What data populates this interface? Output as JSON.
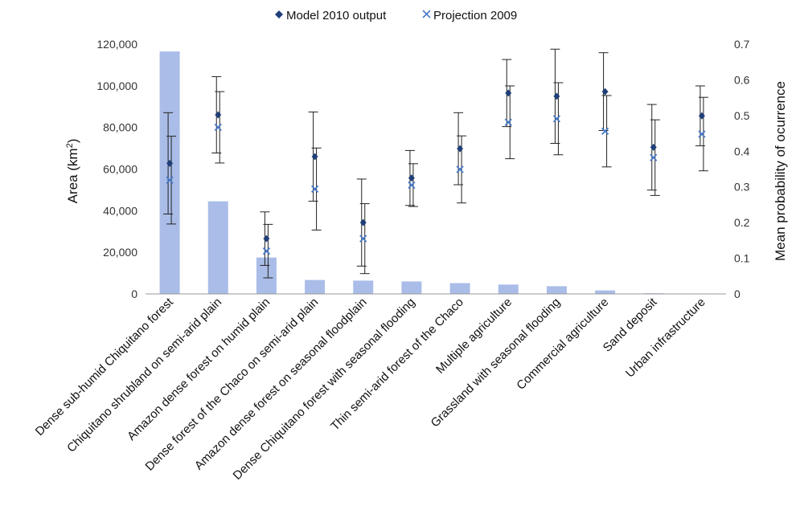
{
  "chart_data": {
    "type": "bar",
    "categories": [
      "Dense sub-humid Chiquitano forest",
      "Chiquitano shrubland on semi-arid plain",
      "Amazon dense forest on humid plain",
      "Dense forest of the Chaco on semi-arid plain",
      "Amazon dense forest on seasonal floodplain",
      "Dense Chiquitano forest with seasonal flooding",
      "Thin semi-arid forest of the Chaco",
      "Multiple agriculture",
      "Grassland with seasonal flooding",
      "Commercial agriculture",
      "Sand deposit",
      "Urban infrastructure"
    ],
    "area_values": [
      116500,
      44500,
      17500,
      6700,
      6400,
      6000,
      5200,
      4500,
      3700,
      1700,
      350,
      150
    ],
    "series": [
      {
        "name": "Model 2010 output",
        "axis": "right",
        "color": "#1f3f7a",
        "marker": "diamond",
        "values": [
          0.366,
          0.502,
          0.155,
          0.385,
          0.2,
          0.325,
          0.407,
          0.563,
          0.554,
          0.567,
          0.411,
          0.499
        ],
        "error": [
          0.142,
          0.107,
          0.075,
          0.125,
          0.122,
          0.077,
          0.101,
          0.094,
          0.132,
          0.109,
          0.12,
          0.084
        ]
      },
      {
        "name": "Projection 2009",
        "axis": "right",
        "color": "#4a7bc8",
        "marker": "x",
        "values": [
          0.319,
          0.467,
          0.12,
          0.294,
          0.155,
          0.305,
          0.349,
          0.481,
          0.491,
          0.456,
          0.382,
          0.448
        ],
        "error": [
          0.123,
          0.1,
          0.075,
          0.115,
          0.098,
          0.06,
          0.094,
          0.102,
          0.101,
          0.1,
          0.106,
          0.103
        ]
      }
    ],
    "bar_color": "#aabde8",
    "ylabel": "Area (km²)",
    "ylabel_base": "Area (km",
    "ylabel_sup": "2",
    "ylabel_close": ")",
    "y2label": "Mean probability of ocurrence",
    "ylim": [
      0,
      120000
    ],
    "y2lim": [
      0,
      0.7
    ],
    "yticks": [
      "0",
      "20,000",
      "40,000",
      "60,000",
      "80,000",
      "100,000",
      "120,000"
    ],
    "y2ticks": [
      "0",
      "0.1",
      "0.2",
      "0.3",
      "0.4",
      "0.5",
      "0.6",
      "0.7"
    ],
    "grid": false,
    "legend_position": "top-center"
  }
}
